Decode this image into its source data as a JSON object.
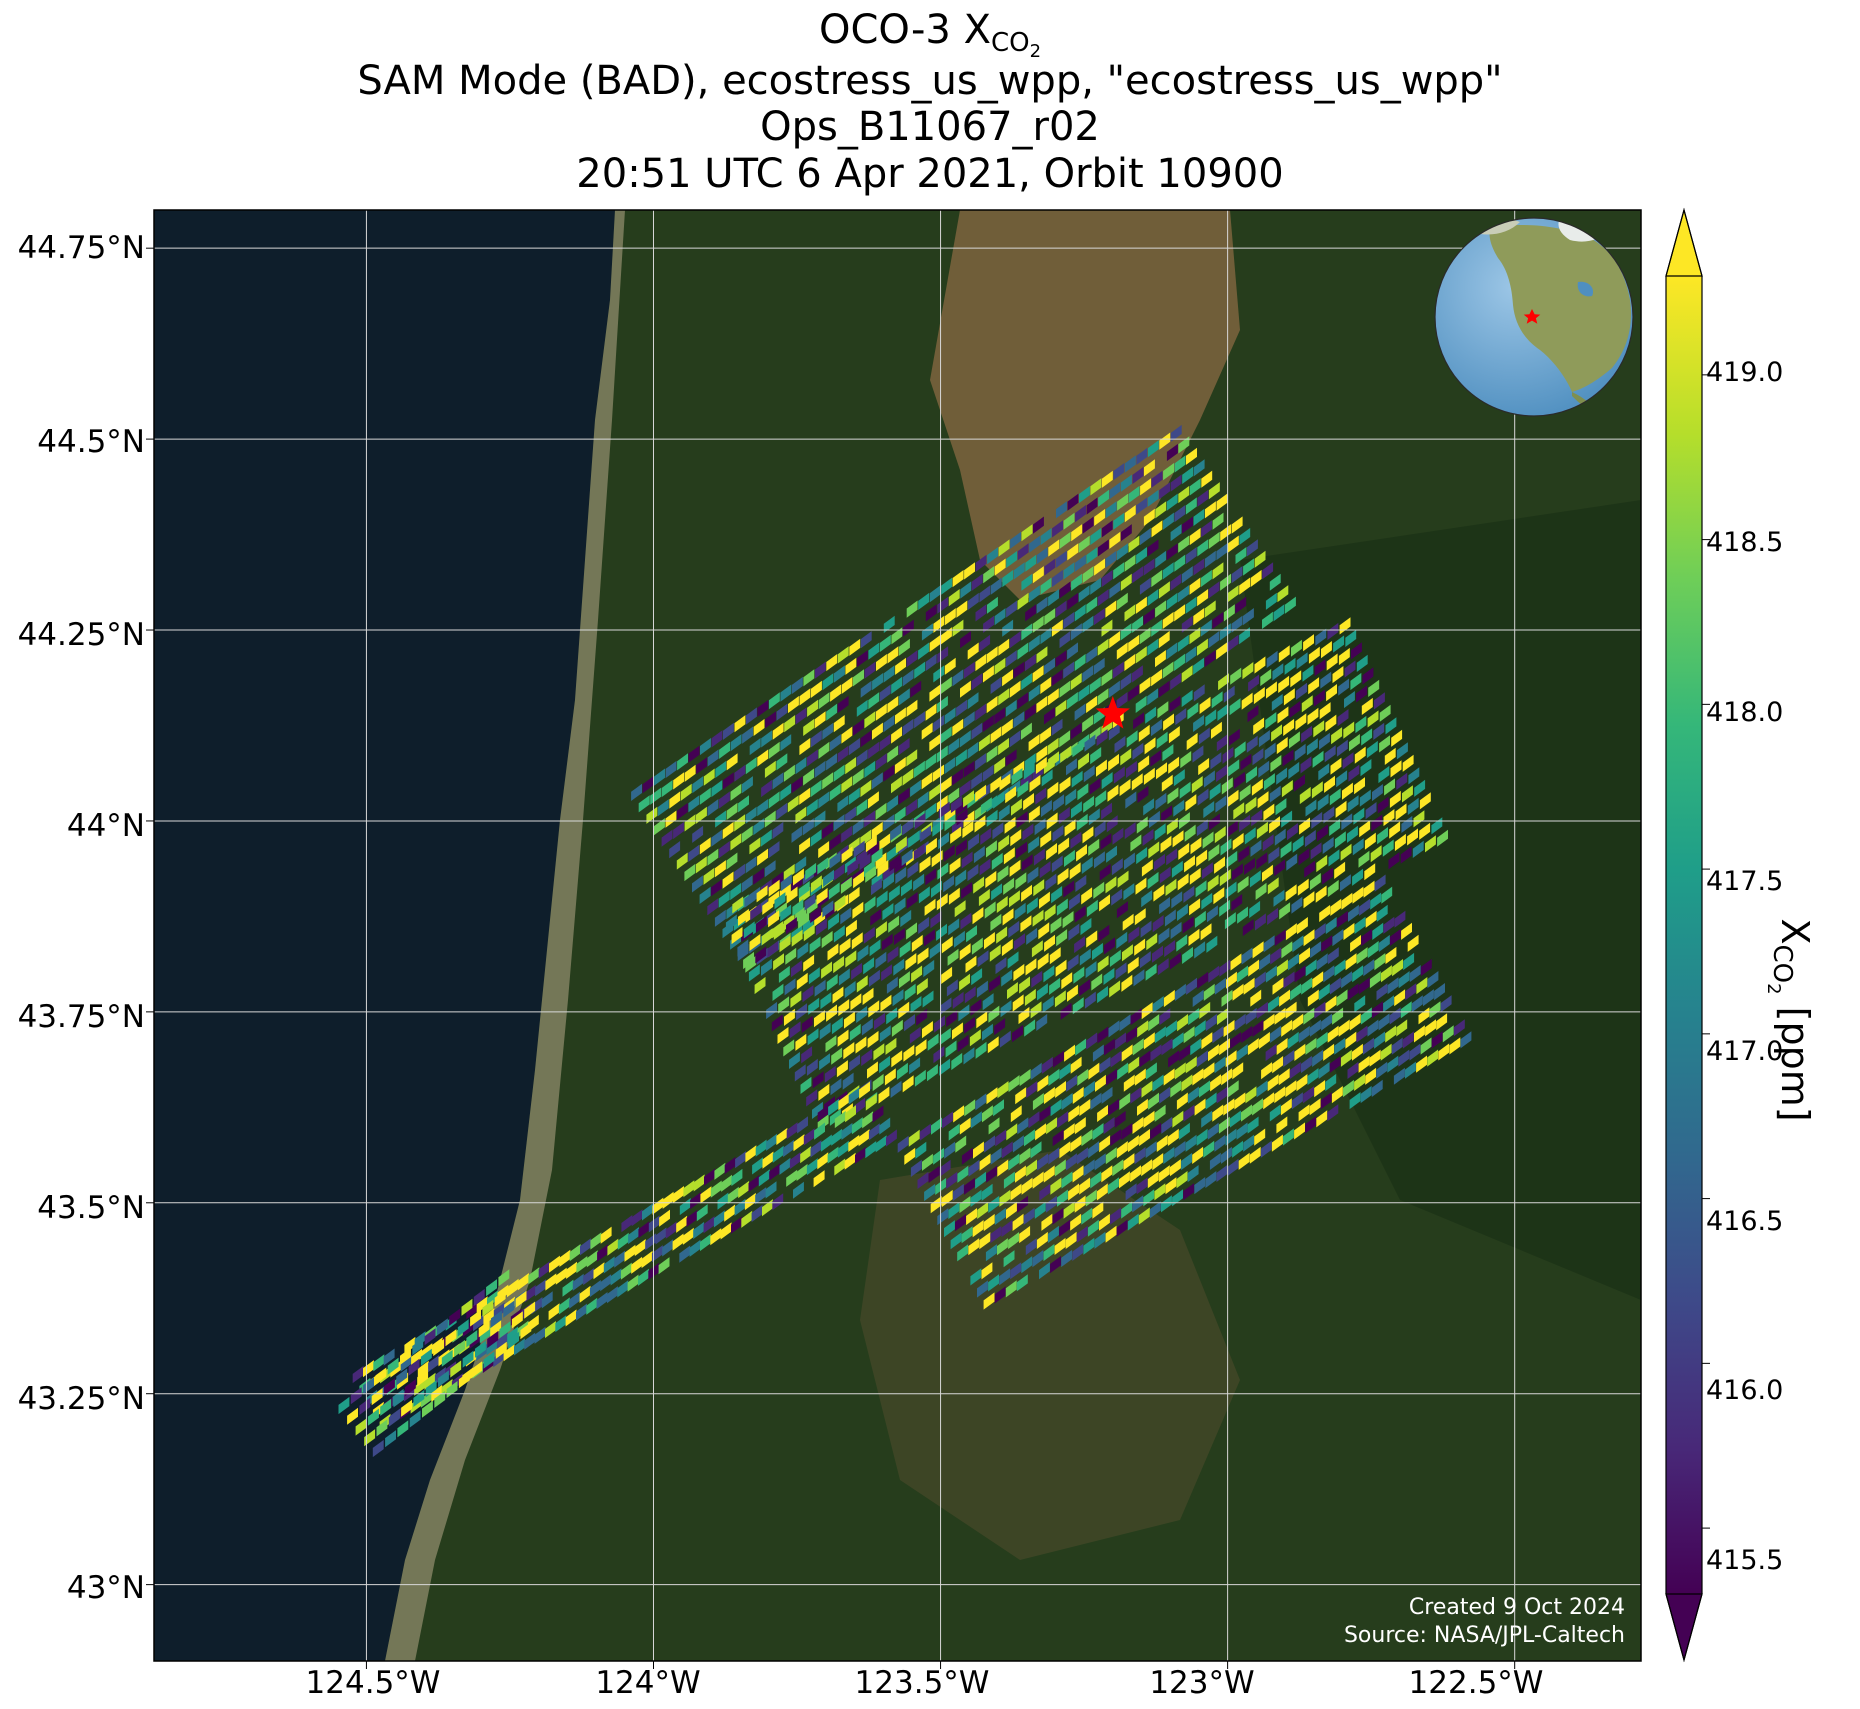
{
  "title": {
    "line1_prefix": "OCO-3 X",
    "line1_sub": "CO",
    "line1_subsub": "2",
    "line2": "SAM Mode (BAD), ecostress_us_wpp, \"ecostress_us_wpp\"",
    "line3": "Ops_B11067_r02",
    "line4": "20:51 UTC 6 Apr 2021, Orbit 10900"
  },
  "axes": {
    "lat_ticks": [
      "44.75°N",
      "44.5°N",
      "44.25°N",
      "44°N",
      "43.75°N",
      "43.5°N",
      "43.25°N",
      "43°N"
    ],
    "lon_ticks": [
      "124.5°W",
      "124°W",
      "123.5°W",
      "123°W",
      "122.5°W"
    ]
  },
  "colorbar": {
    "title_prefix": "X",
    "title_sub": "CO",
    "title_subsub": "2",
    "title_suffix": " [ppm]",
    "ticks": [
      "419.0",
      "418.5",
      "418.0",
      "417.5",
      "417.0",
      "416.5",
      "416.0",
      "415.5"
    ]
  },
  "credits": {
    "created": "Created 9 Oct 2024",
    "source": "Source: NASA/JPL-Caltech"
  },
  "colors": {
    "ocean": "#0e1e2b",
    "land": "#263d1c",
    "star": "#ff0000",
    "viridis": [
      "#440154",
      "#482878",
      "#3e4989",
      "#31688e",
      "#26828e",
      "#1f9e89",
      "#35b779",
      "#6ece58",
      "#b5de2b",
      "#fde725"
    ]
  },
  "chart_data": {
    "type": "map",
    "projection": "lat-lon",
    "lon_range": [
      -124.87,
      -122.28
    ],
    "lat_range": [
      42.9,
      44.8
    ],
    "colorbar_range_ppm": [
      415.3,
      419.3
    ],
    "colormap": "viridis",
    "target_marker": {
      "lon": -123.2,
      "lat": 44.14
    },
    "grid": true
  }
}
